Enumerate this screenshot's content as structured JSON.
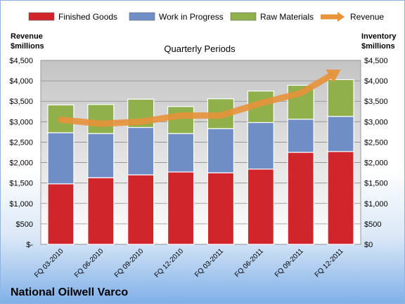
{
  "company_name": "National Oilwell Varco",
  "chart_data": {
    "type": "bar",
    "stacked": true,
    "subtitle": "Quarterly Periods",
    "ylabel_left": "Revenue\n$millions",
    "ylabel_right": "Inventory\n$millions",
    "categories": [
      "FQ 03-2010",
      "FQ 06-2010",
      "FQ 09-2010",
      "FQ 12-2010",
      "FQ 03-2011",
      "FQ 06-2011",
      "FQ 09-2011",
      "FQ 12-2011"
    ],
    "series": [
      {
        "name": "Finished Goods",
        "kind": "bar",
        "color": "#d0262b",
        "values": [
          1480,
          1630,
          1700,
          1770,
          1750,
          1840,
          2250,
          2270
        ]
      },
      {
        "name": "Work in Progress",
        "kind": "bar",
        "color": "#6f8ec6",
        "values": [
          1250,
          1080,
          1160,
          940,
          1080,
          1140,
          810,
          860
        ]
      },
      {
        "name": "Raw Materials",
        "kind": "bar",
        "color": "#8fb04a",
        "values": [
          680,
          710,
          690,
          660,
          730,
          770,
          830,
          900
        ]
      },
      {
        "name": "Revenue",
        "kind": "line",
        "color": "#e8923a",
        "values": [
          3050,
          2950,
          3000,
          3150,
          3150,
          3450,
          3700,
          4270
        ]
      }
    ],
    "left_axis_ticks": [
      "$-",
      "$500",
      "$1,000",
      "$1,500",
      "$2,000",
      "$2,500",
      "$3,000",
      "$3,500",
      "$4,000",
      "$4,500"
    ],
    "right_axis_ticks": [
      "$0",
      "$500",
      "$1,000",
      "$1,500",
      "$2,000",
      "$2,500",
      "$3,000",
      "$3,500",
      "$4,000",
      "$4,500"
    ],
    "ylim": [
      0,
      4500
    ],
    "gridlines": true,
    "legend_position": "top"
  }
}
